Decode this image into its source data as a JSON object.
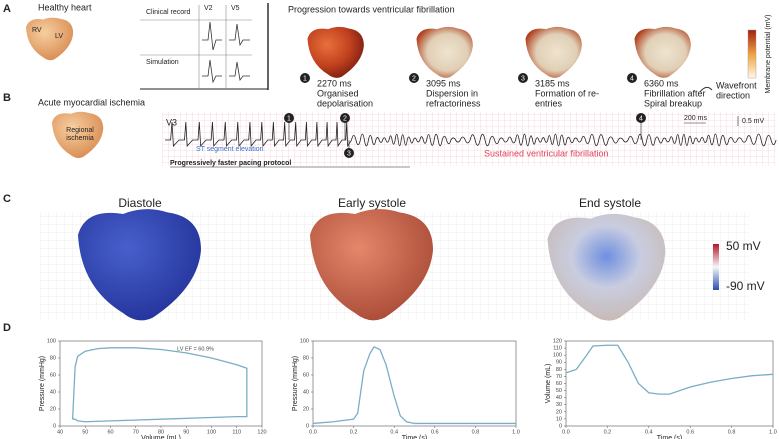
{
  "panel_a": {
    "label": "A",
    "healthy_heart": "Healthy heart",
    "rv": "RV",
    "lv": "LV",
    "clinical_record": "Clinical record",
    "simulation": "Simulation",
    "leads": [
      "V2",
      "V5"
    ],
    "title": "Progression towards ventricular fibrillation",
    "colorbar_label": "Membrane potential (mV)",
    "stages": [
      {
        "number": "1",
        "time": "2270 ms",
        "lines": [
          "Organised",
          "depolarisation"
        ]
      },
      {
        "number": "2",
        "time": "3095 ms",
        "lines": [
          "Dispersion in",
          "refractoriness"
        ]
      },
      {
        "number": "3",
        "time": "3185 ms",
        "lines": [
          "Formation of re-",
          "entries"
        ]
      },
      {
        "number": "4",
        "time": "6360 ms",
        "lines": [
          "Fibrillation after",
          "Spiral breakup"
        ]
      }
    ],
    "wavefront": [
      "Wavefront",
      "direction"
    ]
  },
  "panel_b": {
    "label": "B",
    "title": "Acute myocardial ischemia",
    "regional": [
      "Regional",
      "ischemia"
    ],
    "lead": "V3",
    "scale_time": "200 ms",
    "scale_voltage": "0.5 mV",
    "st": "ST segment elevation",
    "pacing": "Progressively faster pacing protocol",
    "vf": "Sustained ventricular fibrillation",
    "markers": [
      "1",
      "2",
      "3",
      "4"
    ]
  },
  "panel_c": {
    "label": "C",
    "states": [
      "Diastole",
      "Early systole",
      "End systole"
    ],
    "colorbar": [
      "50 mV",
      "-90 mV"
    ]
  },
  "panel_d": {
    "label": "D"
  },
  "chart_data": [
    {
      "type": "line",
      "xlabel": "Volume (mL)",
      "ylabel": "Pressure (mmHg)",
      "annotation": "LV EF = 60.9%",
      "x": [
        45,
        45.5,
        46,
        47,
        50,
        55,
        60,
        70,
        80,
        90,
        100,
        110,
        114,
        114,
        110,
        100,
        80,
        60,
        50,
        47,
        46,
        45
      ],
      "series": [
        {
          "color": "#79aec4",
          "values": [
            8,
            40,
            70,
            82,
            88,
            91,
            92,
            92,
            90,
            86,
            80,
            72,
            68,
            11,
            11,
            10,
            8,
            6,
            5,
            6,
            8,
            8
          ]
        }
      ],
      "xlim": [
        40,
        120
      ],
      "ylim": [
        0,
        100
      ],
      "xticks": [
        40,
        50,
        60,
        70,
        80,
        90,
        100,
        110,
        120
      ],
      "yticks": [
        0,
        20,
        40,
        60,
        80,
        100
      ]
    },
    {
      "type": "line",
      "xlabel": "Time (s)",
      "ylabel": "Pressure (mmHg)",
      "x": [
        0,
        0.1,
        0.2,
        0.22,
        0.25,
        0.28,
        0.3,
        0.33,
        0.36,
        0.4,
        0.43,
        0.46,
        0.5,
        0.7,
        1
      ],
      "series": [
        {
          "color": "#79aec4",
          "values": [
            3,
            5,
            8,
            15,
            65,
            85,
            93,
            90,
            72,
            35,
            12,
            5,
            3,
            3,
            3
          ]
        }
      ],
      "xlim": [
        0,
        1
      ],
      "ylim": [
        0,
        100
      ],
      "xticks": [
        {
          "value": 0,
          "label": "0.0"
        },
        0.2,
        0.4,
        0.6,
        0.8,
        {
          "value": 1,
          "label": "1.0"
        }
      ],
      "yticks": [
        0,
        20,
        40,
        60,
        80,
        100
      ]
    },
    {
      "type": "line",
      "xlabel": "Time (s)",
      "ylabel": "Volume (mL)",
      "x": [
        0,
        0.05,
        0.1,
        0.13,
        0.2,
        0.25,
        0.3,
        0.35,
        0.4,
        0.45,
        0.5,
        0.6,
        0.7,
        0.8,
        0.9,
        1
      ],
      "series": [
        {
          "color": "#79aec4",
          "values": [
            75,
            80,
            100,
            113,
            114,
            114,
            90,
            60,
            47,
            45,
            45,
            55,
            62,
            67,
            71,
            73
          ]
        }
      ],
      "xlim": [
        0,
        1
      ],
      "ylim": [
        0,
        120
      ],
      "xticks": [
        {
          "value": 0,
          "label": "0.0"
        },
        0.2,
        0.4,
        0.6,
        0.8,
        {
          "value": 1,
          "label": "1.0"
        }
      ],
      "yticks": [
        0,
        10,
        20,
        30,
        40,
        50,
        60,
        70,
        80,
        90,
        100,
        110,
        120
      ]
    }
  ]
}
